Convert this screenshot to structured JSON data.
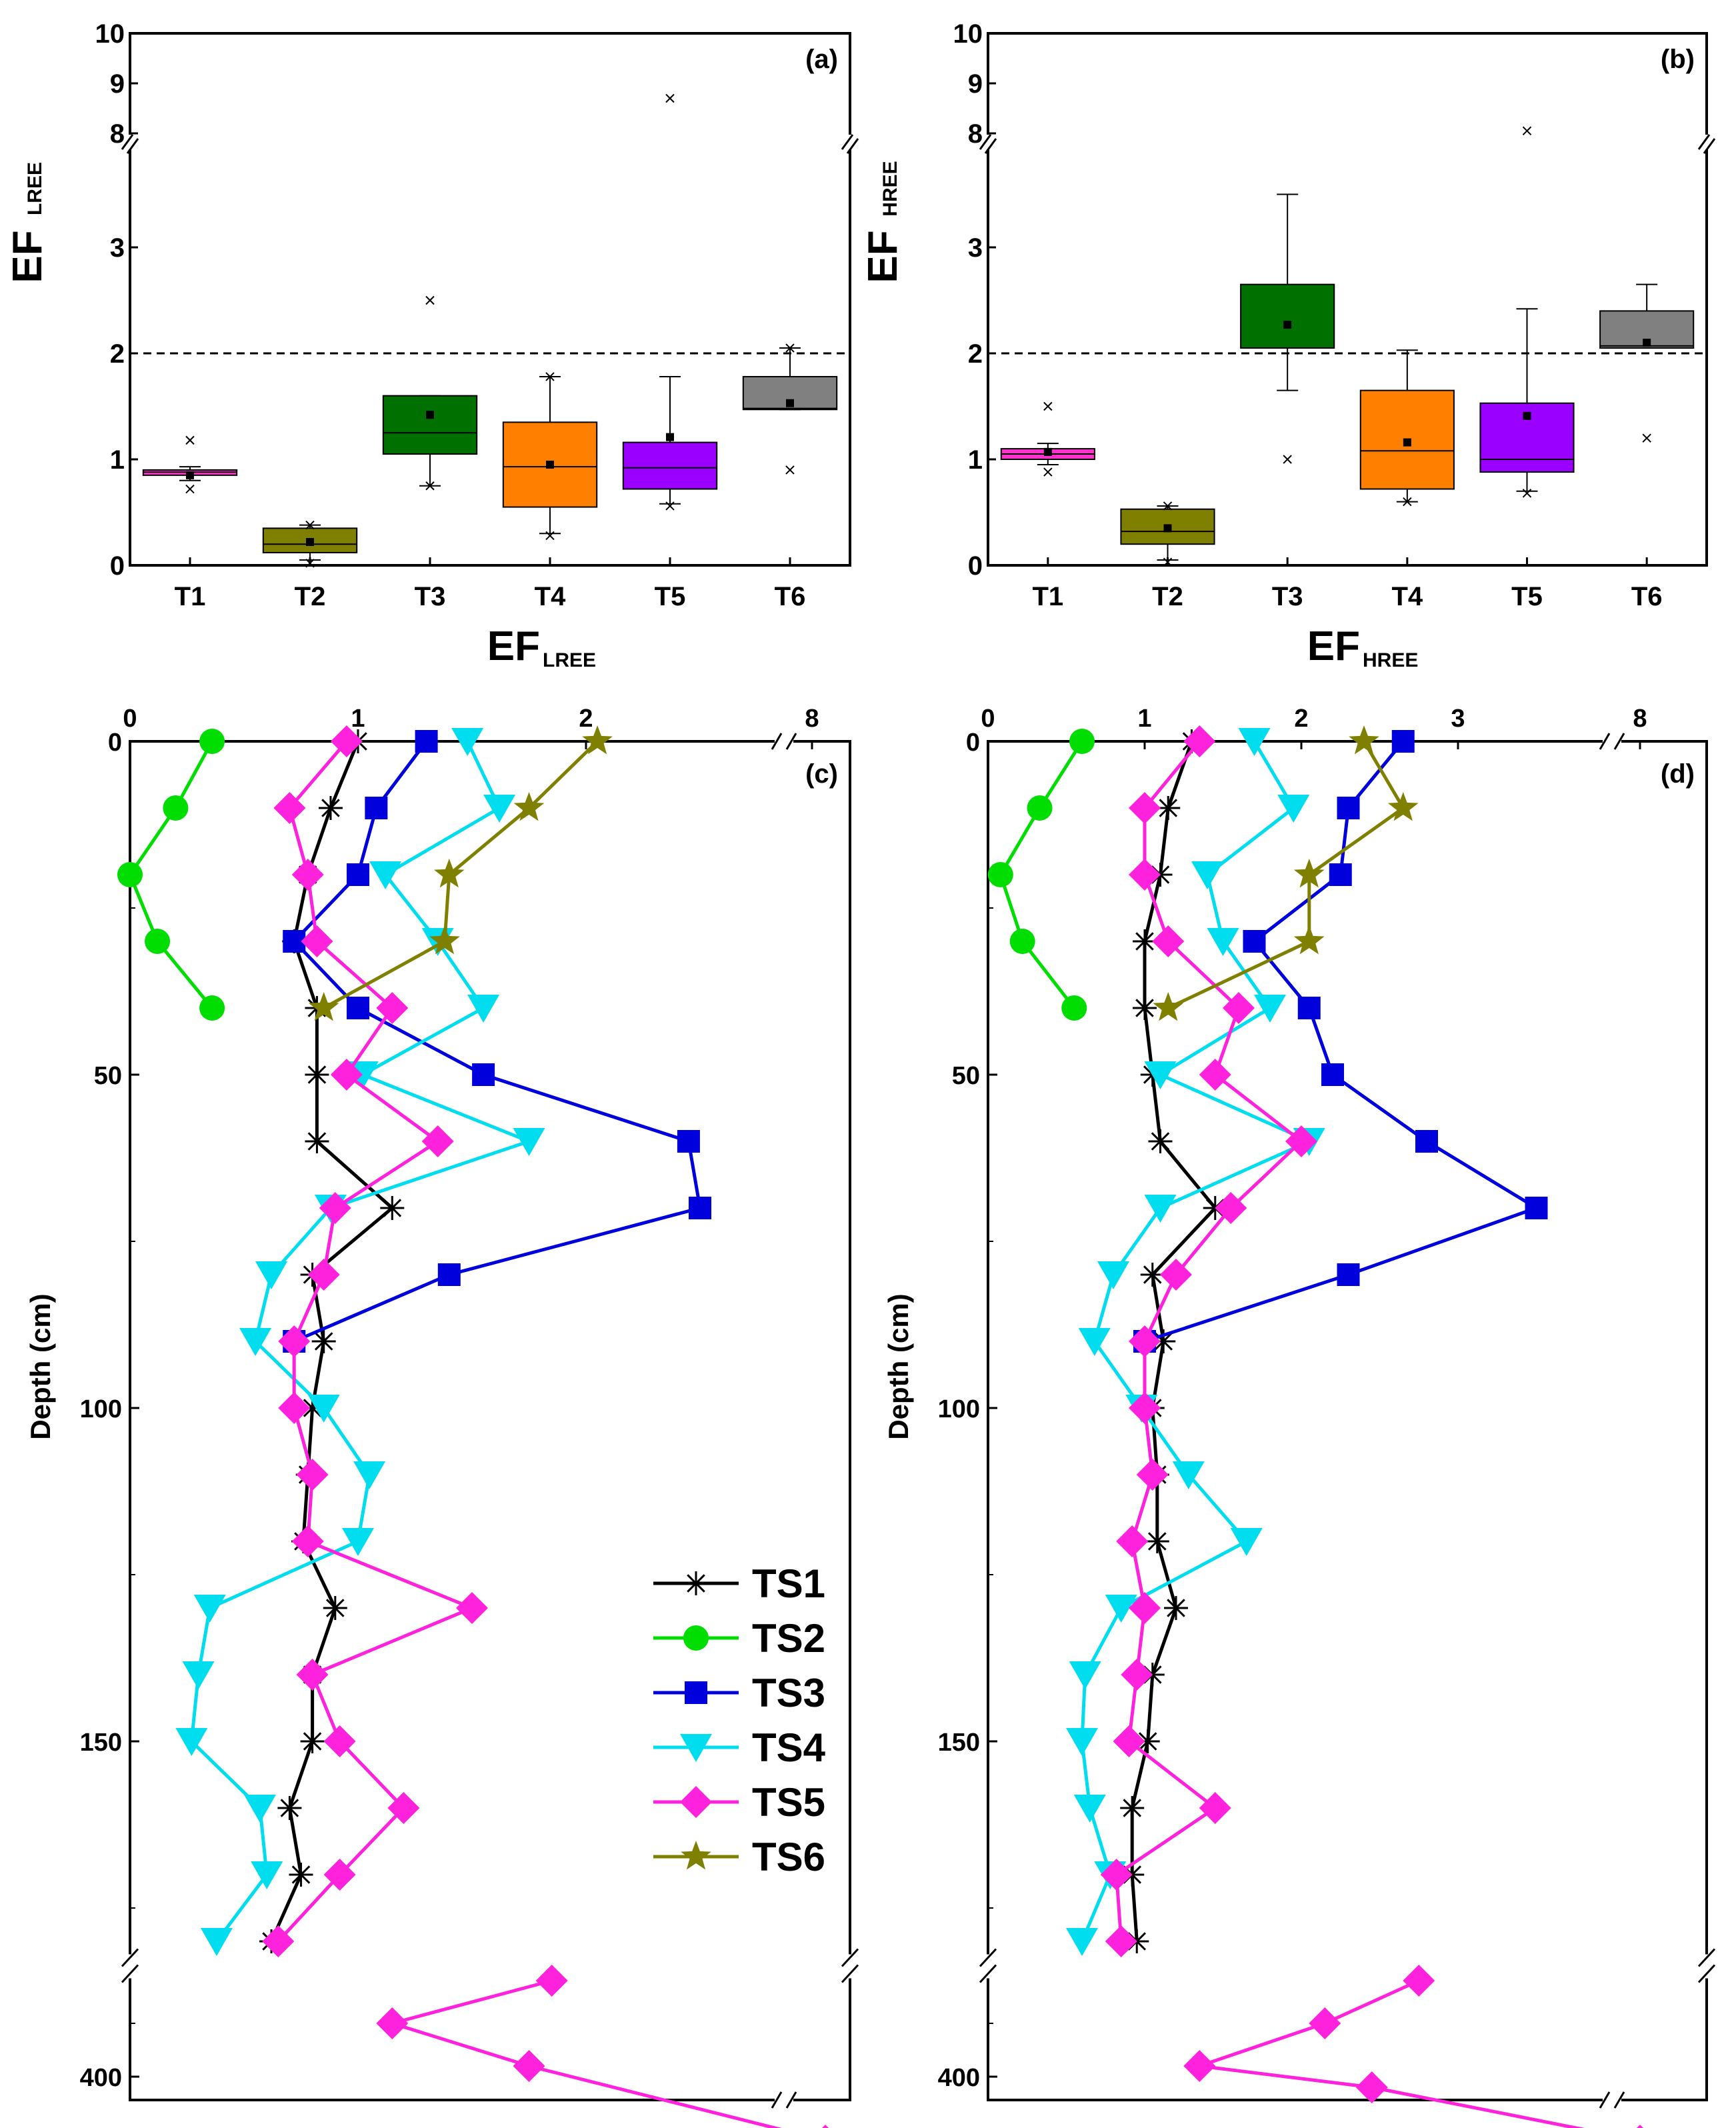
{
  "chart_data": [
    {
      "panel": "(a)",
      "type": "box",
      "ylabel_main": "EF",
      "ylabel_sub": "LREE",
      "yticks": [
        "0",
        "1",
        "2",
        "3",
        "8",
        "9",
        "10"
      ],
      "y_break": [
        4,
        8
      ],
      "reference_line": 2,
      "categories": [
        "T1",
        "T2",
        "T3",
        "T4",
        "T5",
        "T6"
      ],
      "colors": [
        "#ff33cc",
        "#808000",
        "#007000",
        "#ff8000",
        "#9900ff",
        "#808080"
      ],
      "boxes": [
        {
          "q1": 0.85,
          "median": 0.88,
          "q3": 0.9,
          "mean": 0.85,
          "whisker_low": 0.8,
          "whisker_high": 0.93,
          "outliers": [
            1.18,
            0.72
          ]
        },
        {
          "q1": 0.12,
          "median": 0.2,
          "q3": 0.35,
          "mean": 0.22,
          "whisker_low": 0.05,
          "whisker_high": 0.38,
          "outliers": [
            0.02,
            0.38
          ]
        },
        {
          "q1": 1.05,
          "median": 1.25,
          "q3": 1.6,
          "mean": 1.42,
          "whisker_low": 0.75,
          "whisker_high": 1.6,
          "outliers": [
            0.75,
            2.5
          ]
        },
        {
          "q1": 0.55,
          "median": 0.93,
          "q3": 1.35,
          "mean": 0.95,
          "whisker_low": 0.3,
          "whisker_high": 1.78,
          "outliers": [
            0.28,
            1.78
          ]
        },
        {
          "q1": 0.72,
          "median": 0.92,
          "q3": 1.16,
          "mean": 1.21,
          "whisker_low": 0.58,
          "whisker_high": 1.78,
          "outliers": [
            0.56,
            8.7
          ]
        },
        {
          "q1": 1.47,
          "median": 1.48,
          "q3": 1.78,
          "mean": 1.53,
          "whisker_low": 1.47,
          "whisker_high": 2.05,
          "outliers": [
            0.9,
            2.05
          ]
        }
      ],
      "title": "EF",
      "title_sub": "LREE"
    },
    {
      "panel": "(b)",
      "type": "box",
      "ylabel_main": "EF",
      "ylabel_sub": "HREE",
      "yticks": [
        "0",
        "1",
        "2",
        "3",
        "8",
        "9",
        "10"
      ],
      "y_break": [
        4,
        8
      ],
      "reference_line": 2,
      "categories": [
        "T1",
        "T2",
        "T3",
        "T4",
        "T5",
        "T6"
      ],
      "colors": [
        "#ff33cc",
        "#808000",
        "#007000",
        "#ff8000",
        "#9900ff",
        "#808080"
      ],
      "boxes": [
        {
          "q1": 1.0,
          "median": 1.05,
          "q3": 1.1,
          "mean": 1.07,
          "whisker_low": 0.95,
          "whisker_high": 1.15,
          "outliers": [
            1.5,
            0.88
          ]
        },
        {
          "q1": 0.2,
          "median": 0.32,
          "q3": 0.53,
          "mean": 0.35,
          "whisker_low": 0.05,
          "whisker_high": 0.56,
          "outliers": [
            0.03,
            0.56
          ]
        },
        {
          "q1": 2.05,
          "median": 2.05,
          "q3": 2.65,
          "mean": 2.27,
          "whisker_low": 1.65,
          "whisker_high": 3.5,
          "outliers": [
            1.0
          ]
        },
        {
          "q1": 0.72,
          "median": 1.08,
          "q3": 1.65,
          "mean": 1.16,
          "whisker_low": 0.6,
          "whisker_high": 2.03,
          "outliers": [
            0.6
          ]
        },
        {
          "q1": 0.88,
          "median": 1.0,
          "q3": 1.53,
          "mean": 1.41,
          "whisker_low": 0.7,
          "whisker_high": 2.42,
          "outliers": [
            0.68,
            8.05
          ]
        },
        {
          "q1": 2.05,
          "median": 2.07,
          "q3": 2.4,
          "mean": 2.1,
          "whisker_low": 2.05,
          "whisker_high": 2.65,
          "outliers": [
            1.2
          ]
        }
      ],
      "title": "EF",
      "title_sub": "HREE"
    },
    {
      "panel": "(c)",
      "type": "line",
      "x_title_main": "EF",
      "x_title_sub": "LREE",
      "xticks": [
        "0",
        "1",
        "2",
        "8"
      ],
      "ylabel": "Depth (cm)",
      "yticks": [
        "0",
        "50",
        "100",
        "150",
        "400"
      ],
      "series": [
        {
          "name": "TS1",
          "color": "#000000",
          "marker": "asterisk",
          "points": [
            [
              1.0,
              0
            ],
            [
              0.88,
              10
            ],
            [
              0.78,
              20
            ],
            [
              0.72,
              30
            ],
            [
              0.82,
              40
            ],
            [
              0.82,
              50
            ],
            [
              0.82,
              60
            ],
            [
              1.15,
              70
            ],
            [
              0.8,
              80
            ],
            [
              0.85,
              90
            ],
            [
              0.8,
              100
            ],
            [
              0.78,
              110
            ],
            [
              0.76,
              120
            ],
            [
              0.9,
              130
            ],
            [
              0.8,
              140
            ],
            [
              0.8,
              150
            ],
            [
              0.7,
              160
            ],
            [
              0.75,
              170
            ],
            [
              0.62,
              180
            ]
          ]
        },
        {
          "name": "TS2",
          "color": "#00dd00",
          "marker": "circle",
          "points": [
            [
              0.36,
              0
            ],
            [
              0.2,
              10
            ],
            [
              0.0,
              20
            ],
            [
              0.12,
              30
            ],
            [
              0.36,
              40
            ]
          ]
        },
        {
          "name": "TS3",
          "color": "#0000dd",
          "marker": "square",
          "points": [
            [
              1.3,
              0
            ],
            [
              1.08,
              10
            ],
            [
              1.0,
              20
            ],
            [
              0.72,
              30
            ],
            [
              1.0,
              40
            ],
            [
              1.55,
              50
            ],
            [
              2.45,
              60
            ],
            [
              2.5,
              70
            ],
            [
              1.4,
              80
            ],
            [
              0.72,
              90
            ]
          ]
        },
        {
          "name": "TS4",
          "color": "#00ddee",
          "marker": "triangle",
          "points": [
            [
              1.48,
              0
            ],
            [
              1.62,
              10
            ],
            [
              1.12,
              20
            ],
            [
              1.35,
              30
            ],
            [
              1.55,
              40
            ],
            [
              1.02,
              50
            ],
            [
              1.75,
              60
            ],
            [
              0.88,
              70
            ],
            [
              0.62,
              80
            ],
            [
              0.55,
              90
            ],
            [
              0.85,
              100
            ],
            [
              1.05,
              110
            ],
            [
              1.0,
              120
            ],
            [
              0.35,
              130
            ],
            [
              0.3,
              140
            ],
            [
              0.27,
              150
            ],
            [
              0.57,
              160
            ],
            [
              0.6,
              170
            ],
            [
              0.38,
              180
            ]
          ]
        },
        {
          "name": "TS5",
          "color": "#ff22dd",
          "marker": "diamond",
          "points": [
            [
              0.95,
              0
            ],
            [
              0.7,
              10
            ],
            [
              0.78,
              20
            ],
            [
              0.82,
              30
            ],
            [
              1.15,
              40
            ],
            [
              0.95,
              50
            ],
            [
              1.35,
              60
            ],
            [
              0.9,
              70
            ],
            [
              0.85,
              80
            ],
            [
              0.72,
              90
            ],
            [
              0.72,
              100
            ],
            [
              0.8,
              110
            ],
            [
              0.78,
              120
            ],
            [
              1.5,
              130
            ],
            [
              0.8,
              140
            ],
            [
              0.92,
              150
            ],
            [
              1.2,
              160
            ],
            [
              0.92,
              170
            ],
            [
              0.65,
              180
            ],
            [
              1.85,
              382
            ],
            [
              1.15,
              390
            ],
            [
              1.75,
              398
            ],
            [
              8.5,
              412
            ]
          ]
        },
        {
          "name": "TS6",
          "color": "#808000",
          "marker": "star",
          "points": [
            [
              2.05,
              0
            ],
            [
              1.75,
              10
            ],
            [
              1.4,
              20
            ],
            [
              1.38,
              30
            ],
            [
              0.85,
              40
            ]
          ]
        }
      ]
    },
    {
      "panel": "(d)",
      "type": "line",
      "x_title_main": "EF",
      "x_title_sub": "HREE",
      "xticks": [
        "0",
        "1",
        "2",
        "3",
        "8"
      ],
      "ylabel": "Depth (cm)",
      "yticks": [
        "0",
        "50",
        "100",
        "150",
        "400"
      ],
      "series": [
        {
          "name": "TS1",
          "color": "#000000",
          "marker": "asterisk",
          "points": [
            [
              1.3,
              0
            ],
            [
              1.15,
              10
            ],
            [
              1.1,
              20
            ],
            [
              1.0,
              30
            ],
            [
              1.0,
              40
            ],
            [
              1.05,
              50
            ],
            [
              1.1,
              60
            ],
            [
              1.45,
              70
            ],
            [
              1.05,
              80
            ],
            [
              1.12,
              90
            ],
            [
              1.05,
              100
            ],
            [
              1.08,
              110
            ],
            [
              1.08,
              120
            ],
            [
              1.2,
              130
            ],
            [
              1.05,
              140
            ],
            [
              1.02,
              150
            ],
            [
              0.92,
              160
            ],
            [
              0.92,
              170
            ],
            [
              0.95,
              180
            ]
          ]
        },
        {
          "name": "TS2",
          "color": "#00dd00",
          "marker": "circle",
          "points": [
            [
              0.6,
              0
            ],
            [
              0.33,
              10
            ],
            [
              0.08,
              20
            ],
            [
              0.22,
              30
            ],
            [
              0.55,
              40
            ]
          ]
        },
        {
          "name": "TS3",
          "color": "#0000dd",
          "marker": "square",
          "points": [
            [
              2.65,
              0
            ],
            [
              2.3,
              10
            ],
            [
              2.25,
              20
            ],
            [
              1.7,
              30
            ],
            [
              2.05,
              40
            ],
            [
              2.2,
              50
            ],
            [
              2.8,
              60
            ],
            [
              3.5,
              70
            ],
            [
              2.3,
              80
            ],
            [
              1.0,
              90
            ]
          ]
        },
        {
          "name": "TS4",
          "color": "#00ddee",
          "marker": "triangle",
          "points": [
            [
              1.7,
              0
            ],
            [
              1.95,
              10
            ],
            [
              1.4,
              20
            ],
            [
              1.5,
              30
            ],
            [
              1.8,
              40
            ],
            [
              1.1,
              50
            ],
            [
              2.05,
              60
            ],
            [
              1.1,
              70
            ],
            [
              0.8,
              80
            ],
            [
              0.68,
              90
            ],
            [
              0.98,
              100
            ],
            [
              1.28,
              110
            ],
            [
              1.65,
              120
            ],
            [
              0.85,
              130
            ],
            [
              0.62,
              140
            ],
            [
              0.6,
              150
            ],
            [
              0.65,
              160
            ],
            [
              0.78,
              170
            ],
            [
              0.6,
              180
            ]
          ]
        },
        {
          "name": "TS5",
          "color": "#ff22dd",
          "marker": "diamond",
          "points": [
            [
              1.35,
              0
            ],
            [
              1.0,
              10
            ],
            [
              1.0,
              20
            ],
            [
              1.15,
              30
            ],
            [
              1.6,
              40
            ],
            [
              1.45,
              50
            ],
            [
              2.0,
              60
            ],
            [
              1.55,
              70
            ],
            [
              1.2,
              80
            ],
            [
              1.0,
              90
            ],
            [
              1.0,
              100
            ],
            [
              1.05,
              110
            ],
            [
              0.92,
              120
            ],
            [
              1.0,
              130
            ],
            [
              0.95,
              140
            ],
            [
              0.9,
              150
            ],
            [
              1.45,
              160
            ],
            [
              0.82,
              170
            ],
            [
              0.85,
              180
            ],
            [
              2.75,
              382
            ],
            [
              2.15,
              390
            ],
            [
              1.35,
              398
            ],
            [
              2.45,
              402
            ],
            [
              8.0,
              412
            ]
          ]
        },
        {
          "name": "TS6",
          "color": "#808000",
          "marker": "star",
          "points": [
            [
              2.4,
              0
            ],
            [
              2.65,
              10
            ],
            [
              2.05,
              20
            ],
            [
              2.05,
              30
            ],
            [
              1.15,
              40
            ]
          ]
        }
      ]
    }
  ],
  "legend": [
    "TS1",
    "TS2",
    "TS3",
    "TS4",
    "TS5",
    "TS6"
  ]
}
